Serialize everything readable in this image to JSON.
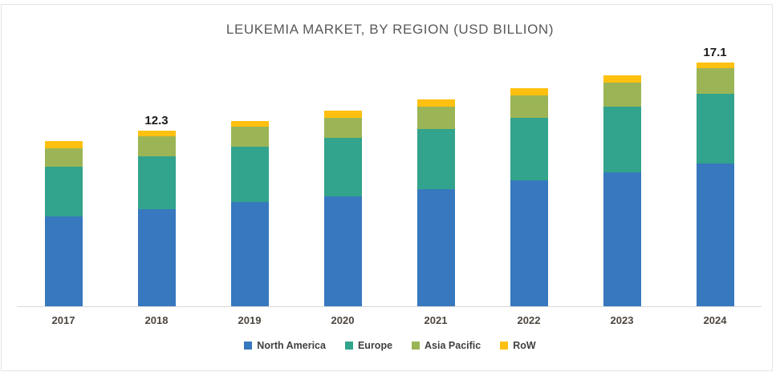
{
  "chart_data": {
    "type": "bar",
    "stacked": true,
    "title": "LEUKEMIA MARKET, BY REGION (USD BILLION)",
    "xlabel": "",
    "ylabel": "",
    "ylim": [
      0,
      18.5
    ],
    "grid": false,
    "y_axis_visible": false,
    "legend_position": "bottom",
    "categories": [
      "2017",
      "2018",
      "2019",
      "2020",
      "2021",
      "2022",
      "2023",
      "2024"
    ],
    "series": [
      {
        "name": "North America",
        "color": "#3778be",
        "values": [
          6.3,
          6.8,
          7.3,
          7.7,
          8.2,
          8.8,
          9.4,
          10.0
        ]
      },
      {
        "name": "Europe",
        "color": "#32a38c",
        "values": [
          3.5,
          3.7,
          3.9,
          4.1,
          4.2,
          4.4,
          4.6,
          4.9
        ]
      },
      {
        "name": "Asia Pacific",
        "color": "#9bb556",
        "values": [
          1.3,
          1.4,
          1.4,
          1.4,
          1.6,
          1.6,
          1.7,
          1.8
        ]
      },
      {
        "name": "RoW",
        "color": "#ffc010",
        "values": [
          0.5,
          0.4,
          0.4,
          0.5,
          0.5,
          0.5,
          0.5,
          0.4
        ]
      }
    ],
    "totals": [
      11.6,
      12.3,
      13.0,
      13.7,
      14.5,
      15.3,
      16.2,
      17.1
    ],
    "data_labels": {
      "2018": "12.3",
      "2024": "17.1"
    },
    "colors": {
      "title_text": "#595959",
      "axis_line": "#d9d9d9",
      "x_tick_text": "#4c4640",
      "legend_text": "#3f3f3f",
      "data_label_text": "#1a1a1a"
    }
  }
}
